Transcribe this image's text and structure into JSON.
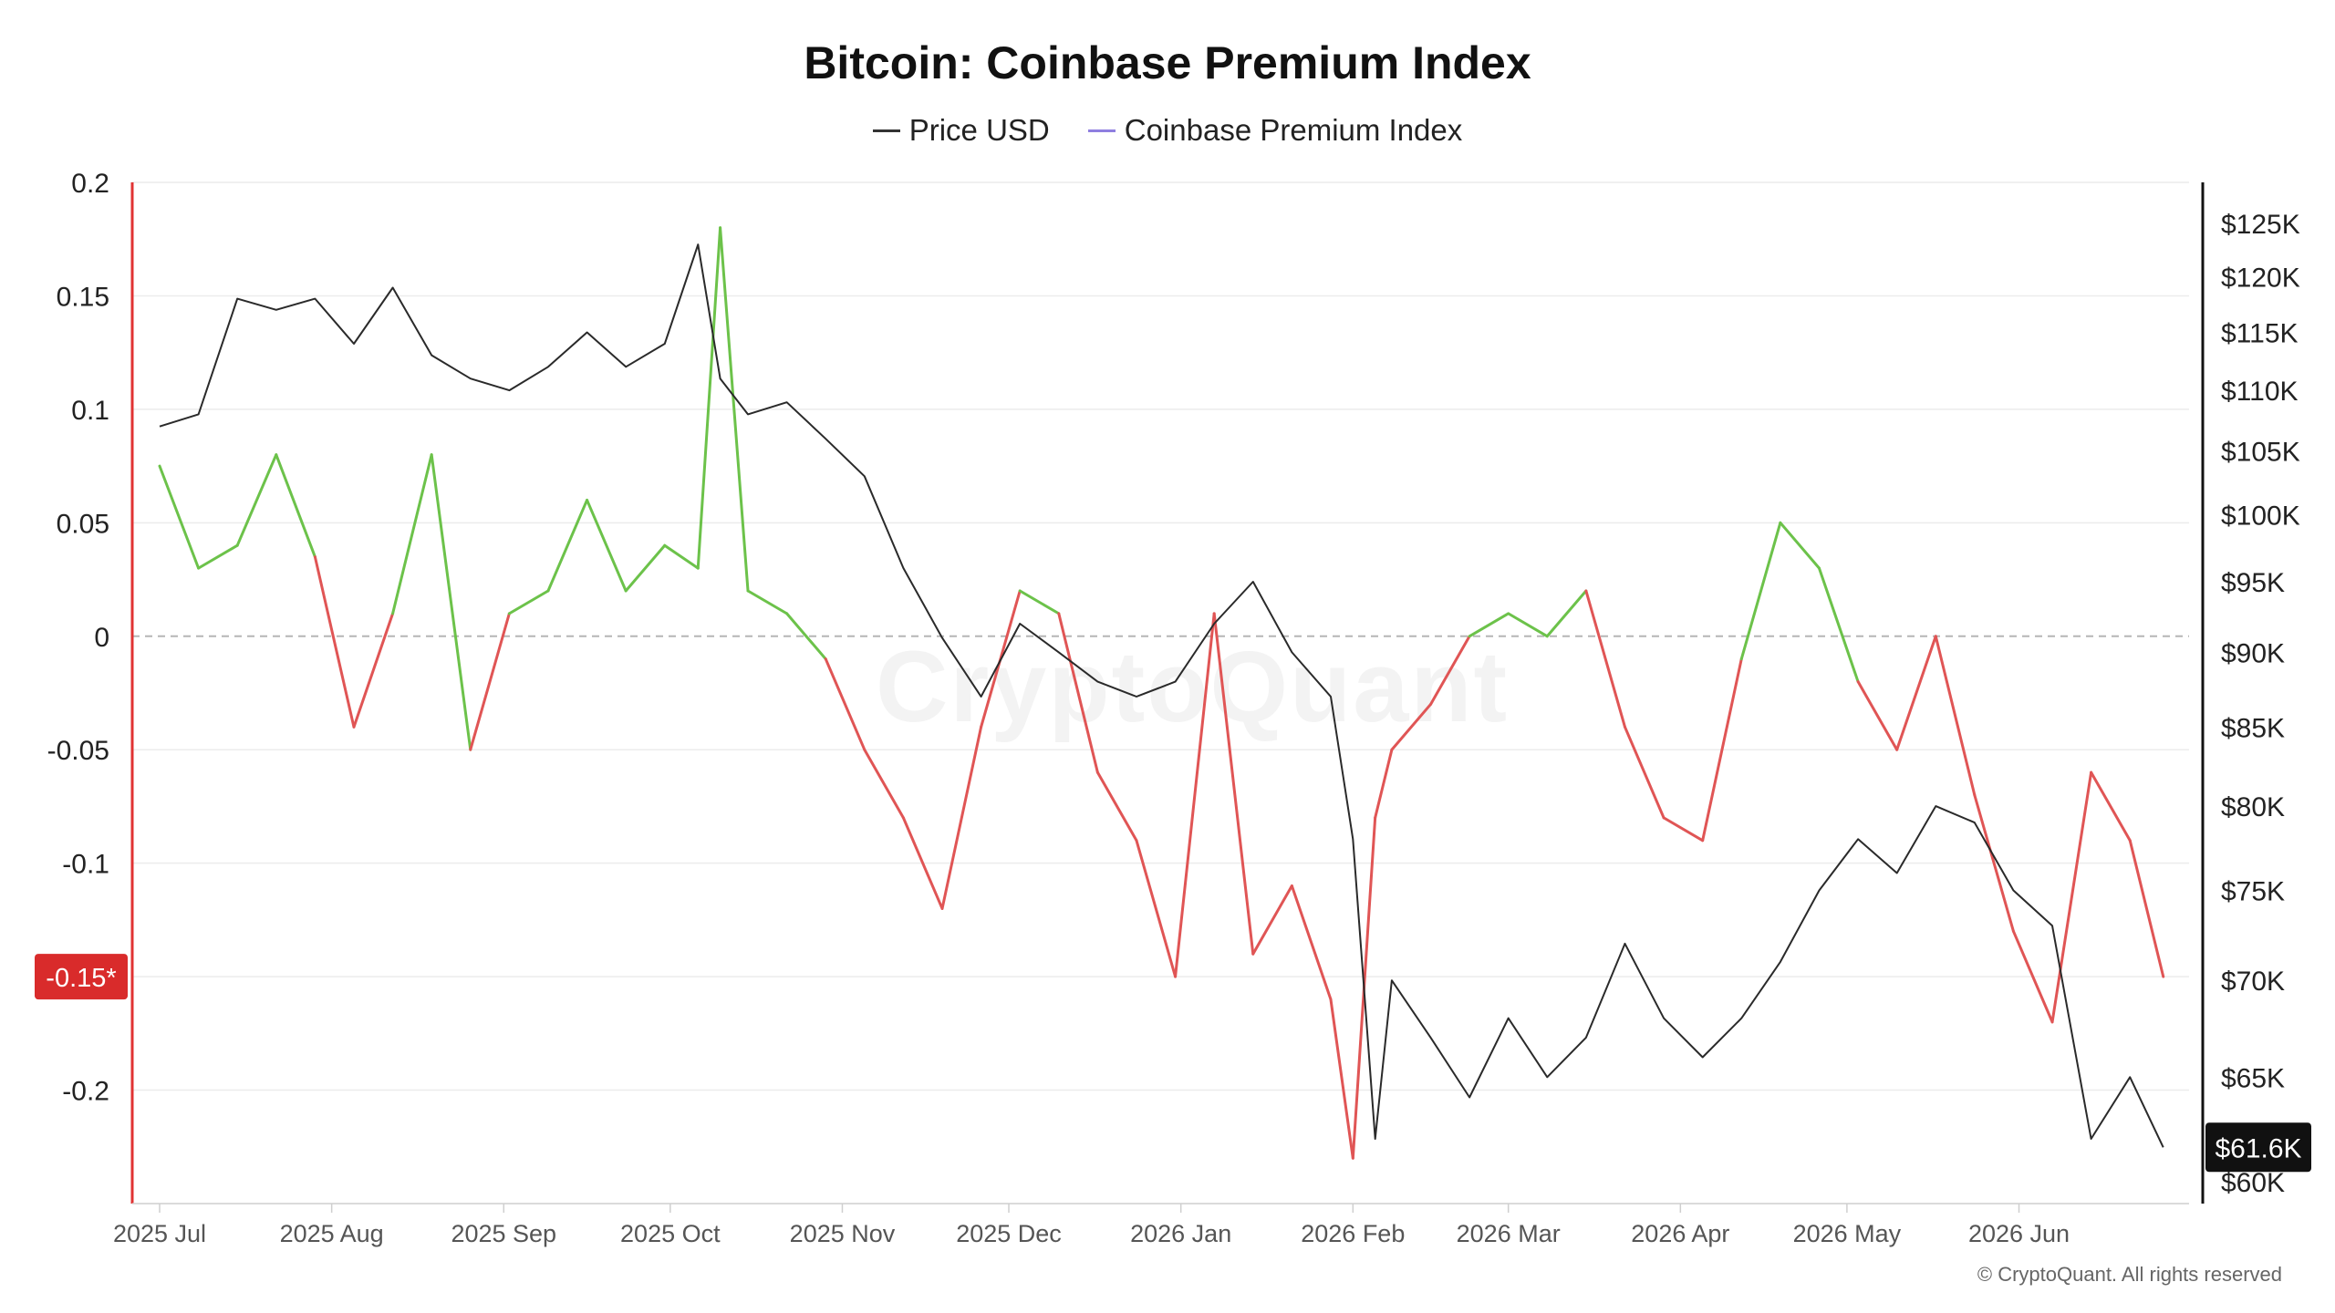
{
  "chart_data": {
    "type": "line",
    "title": "Bitcoin: Coinbase Premium Index",
    "legend": [
      {
        "label": "Price USD",
        "color": "#333333"
      },
      {
        "label": "Coinbase Premium Index",
        "color": "#8f7fe0"
      }
    ],
    "legend_position": "top-center",
    "grid": true,
    "x_tick_labels": [
      "2025 Jul",
      "2025 Aug",
      "2025 Sep",
      "2025 Oct",
      "2025 Nov",
      "2025 Dec",
      "2026 Jan",
      "2026 Feb",
      "2026 Mar",
      "2026 Apr",
      "2026 May",
      "2026 Jun"
    ],
    "y_left": {
      "ticks": [
        0.2,
        0.15,
        0.1,
        0.05,
        0,
        -0.05,
        -0.1,
        -0.2
      ],
      "tick_labels": [
        "0.2",
        "0.15",
        "0.1",
        "0.05",
        "0",
        "-0.05",
        "-0.1",
        "-0.2"
      ],
      "range": [
        -0.25,
        0.2
      ]
    },
    "y_right": {
      "ticks": [
        125,
        120,
        115,
        110,
        105,
        100,
        95,
        90,
        85,
        80,
        75,
        70,
        65,
        60
      ],
      "tick_labels": [
        "$125K",
        "$120K",
        "$115K",
        "$110K",
        "$105K",
        "$100K",
        "$95K",
        "$90K",
        "$85K",
        "$80K",
        "$75K",
        "$70K",
        "$65K",
        "$60K"
      ],
      "range_k_usd": [
        59,
        129
      ],
      "scale": "log"
    },
    "current_premium_label": "-0.15*",
    "current_price_label": "$61.6K",
    "series": [
      {
        "name": "Price USD",
        "axis": "right",
        "unit": "K USD",
        "x": [
          "2025-07-01",
          "2025-07-08",
          "2025-07-15",
          "2025-07-22",
          "2025-07-29",
          "2025-08-05",
          "2025-08-12",
          "2025-08-19",
          "2025-08-26",
          "2025-09-02",
          "2025-09-09",
          "2025-09-16",
          "2025-09-23",
          "2025-09-30",
          "2025-10-06",
          "2025-10-10",
          "2025-10-15",
          "2025-10-22",
          "2025-10-29",
          "2025-11-05",
          "2025-11-12",
          "2025-11-19",
          "2025-11-26",
          "2025-12-03",
          "2025-12-10",
          "2025-12-17",
          "2025-12-24",
          "2025-12-31",
          "2026-01-07",
          "2026-01-14",
          "2026-01-21",
          "2026-01-28",
          "2026-02-01",
          "2026-02-05",
          "2026-02-08",
          "2026-02-15",
          "2026-02-22",
          "2026-03-01",
          "2026-03-08",
          "2026-03-15",
          "2026-03-22",
          "2026-03-29",
          "2026-04-05",
          "2026-04-12",
          "2026-04-19",
          "2026-04-26",
          "2026-05-03",
          "2026-05-10",
          "2026-05-17",
          "2026-05-24",
          "2026-05-31",
          "2026-06-07",
          "2026-06-14",
          "2026-06-21",
          "2026-06-27"
        ],
        "y": [
          107,
          108,
          118,
          117,
          118,
          114,
          119,
          113,
          111,
          110,
          112,
          115,
          112,
          114,
          123,
          111,
          108,
          109,
          106,
          103,
          96,
          91,
          87,
          92,
          90,
          88,
          87,
          88,
          92,
          95,
          90,
          87,
          78,
          62,
          70,
          67,
          64,
          68,
          65,
          67,
          72,
          68,
          66,
          68,
          71,
          75,
          78,
          76,
          80,
          79,
          75,
          73,
          62,
          65,
          61.6
        ]
      },
      {
        "name": "Coinbase Premium Index",
        "axis": "left",
        "color_positive": "#6cc24a",
        "color_negative": "#e05555",
        "x": [
          "2025-07-01",
          "2025-07-08",
          "2025-07-15",
          "2025-07-22",
          "2025-07-29",
          "2025-08-05",
          "2025-08-12",
          "2025-08-19",
          "2025-08-26",
          "2025-09-02",
          "2025-09-09",
          "2025-09-16",
          "2025-09-23",
          "2025-09-30",
          "2025-10-06",
          "2025-10-10",
          "2025-10-15",
          "2025-10-22",
          "2025-10-29",
          "2025-11-05",
          "2025-11-12",
          "2025-11-19",
          "2025-11-26",
          "2025-12-03",
          "2025-12-10",
          "2025-12-17",
          "2025-12-24",
          "2025-12-31",
          "2026-01-07",
          "2026-01-14",
          "2026-01-21",
          "2026-01-28",
          "2026-02-01",
          "2026-02-05",
          "2026-02-08",
          "2026-02-15",
          "2026-02-22",
          "2026-03-01",
          "2026-03-08",
          "2026-03-15",
          "2026-03-22",
          "2026-03-29",
          "2026-04-05",
          "2026-04-12",
          "2026-04-19",
          "2026-04-26",
          "2026-05-03",
          "2026-05-10",
          "2026-05-17",
          "2026-05-24",
          "2026-05-31",
          "2026-06-07",
          "2026-06-14",
          "2026-06-21",
          "2026-06-27"
        ],
        "y": [
          0.075,
          0.03,
          0.04,
          0.08,
          0.035,
          -0.04,
          0.01,
          0.08,
          -0.05,
          0.01,
          0.02,
          0.06,
          0.02,
          0.04,
          0.03,
          0.18,
          0.02,
          0.01,
          -0.01,
          -0.05,
          -0.08,
          -0.12,
          -0.04,
          0.02,
          0.01,
          -0.06,
          -0.09,
          -0.15,
          0.01,
          -0.14,
          -0.11,
          -0.16,
          -0.23,
          -0.08,
          -0.05,
          -0.03,
          0.0,
          0.01,
          0.0,
          0.02,
          -0.04,
          -0.08,
          -0.09,
          -0.01,
          0.05,
          0.03,
          -0.02,
          -0.05,
          0.0,
          -0.07,
          -0.13,
          -0.17,
          -0.06,
          -0.09,
          -0.15
        ]
      }
    ]
  },
  "credit": "© CryptoQuant. All rights reserved",
  "watermark": "CryptoQuant"
}
